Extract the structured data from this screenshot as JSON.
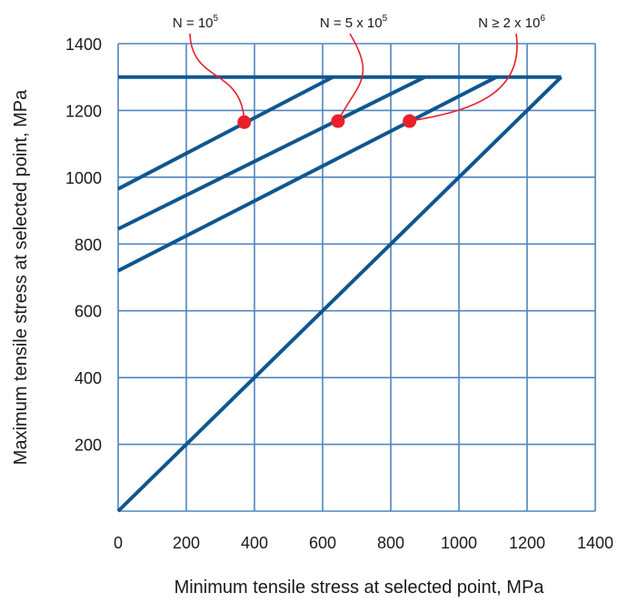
{
  "chart_data": {
    "type": "line",
    "title": "",
    "xlabel": "Minimum tensile stress at selected point, MPa",
    "ylabel": "Maximum tensile stress at selected point, MPa",
    "xlim": [
      0,
      1400
    ],
    "ylim": [
      0,
      1400
    ],
    "x_ticks": [
      "0",
      "200",
      "400",
      "600",
      "800",
      "1000",
      "1200",
      "1400"
    ],
    "y_ticks": [
      "200",
      "400",
      "600",
      "800",
      "1000",
      "1200",
      "1400"
    ],
    "x_tick_values": [
      0,
      200,
      400,
      600,
      800,
      1000,
      1200,
      1400
    ],
    "y_tick_values": [
      200,
      400,
      600,
      800,
      1000,
      1200,
      1400
    ],
    "grid": true,
    "line_color": "#0f568f",
    "grid_color": "#4f86c0",
    "marker_color": "#e8202a",
    "series": [
      {
        "x": [
          0,
          1300
        ],
        "y": [
          0,
          1300
        ]
      },
      {
        "x": [
          0,
          1300
        ],
        "y": [
          1300,
          1300
        ]
      },
      {
        "x": [
          0,
          630
        ],
        "y": [
          965,
          1300
        ]
      },
      {
        "x": [
          0,
          900
        ],
        "y": [
          845,
          1300
        ]
      },
      {
        "x": [
          0,
          1110
        ],
        "y": [
          720,
          1300
        ]
      }
    ],
    "annotations": [
      {
        "base": "N = 10",
        "sup": "5",
        "point": [
          370,
          1165
        ]
      },
      {
        "base": "N = 5 x 10",
        "sup": "5",
        "point": [
          645,
          1168
        ]
      },
      {
        "base": "N ≥ 2 x 10",
        "sup": "6",
        "point": [
          855,
          1168
        ]
      }
    ]
  }
}
